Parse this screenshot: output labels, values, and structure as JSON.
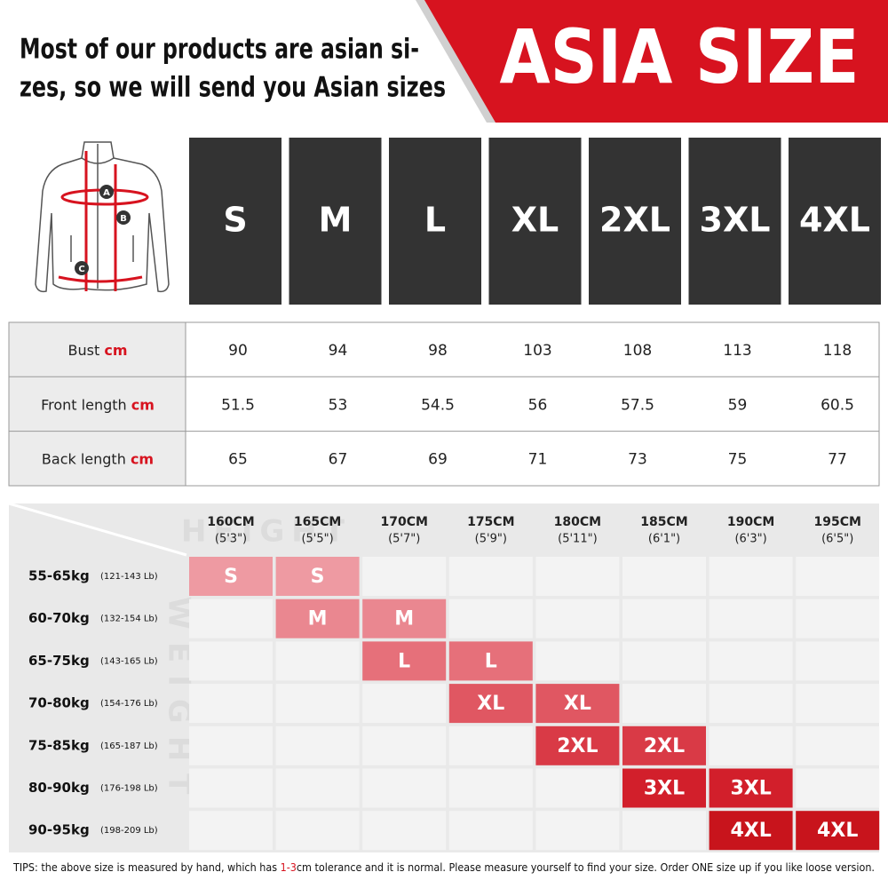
{
  "header": {
    "lines": [
      "Most of our products are asian si-",
      "zes, so we will send you Asian sizes"
    ],
    "badge": "ASIA SIZE"
  },
  "diagram": {
    "labels": [
      "A",
      "B",
      "C"
    ]
  },
  "sizes": [
    "S",
    "M",
    "L",
    "XL",
    "2XL",
    "3XL",
    "4XL"
  ],
  "measurements": [
    {
      "label": "Bust",
      "unit": "cm",
      "values": [
        90,
        94,
        98,
        103,
        108,
        113,
        118
      ]
    },
    {
      "label": "Front length",
      "unit": "cm",
      "values": [
        51.5,
        53,
        54.5,
        56,
        57.5,
        59,
        60.5
      ]
    },
    {
      "label": "Back length",
      "unit": "cm",
      "values": [
        65,
        67,
        69,
        71,
        73,
        75,
        77
      ]
    }
  ],
  "fit": {
    "height_watermark": "HEIGHT",
    "weight_watermark": "WEIGHT",
    "heights": [
      {
        "cm": "160CM",
        "ft": "(5'3\")"
      },
      {
        "cm": "165CM",
        "ft": "(5'5\")"
      },
      {
        "cm": "170CM",
        "ft": "(5'7\")"
      },
      {
        "cm": "175CM",
        "ft": "(5'9\")"
      },
      {
        "cm": "180CM",
        "ft": "(5'11\")"
      },
      {
        "cm": "185CM",
        "ft": "(6'1\")"
      },
      {
        "cm": "190CM",
        "ft": "(6'3\")"
      },
      {
        "cm": "195CM",
        "ft": "(6'5\")"
      }
    ],
    "rows": [
      {
        "weight": "55-65kg",
        "lb": "(121-143 Lb)",
        "color": "#ee9aa2",
        "cells": [
          "S",
          "S",
          null,
          null,
          null,
          null,
          null,
          null
        ]
      },
      {
        "weight": "60-70kg",
        "lb": "(132-154 Lb)",
        "color": "#ea8790",
        "cells": [
          null,
          "M",
          "M",
          null,
          null,
          null,
          null,
          null
        ]
      },
      {
        "weight": "65-75kg",
        "lb": "(143-165 Lb)",
        "color": "#e6707a",
        "cells": [
          null,
          null,
          "L",
          "L",
          null,
          null,
          null,
          null
        ]
      },
      {
        "weight": "70-80kg",
        "lb": "(154-176 Lb)",
        "color": "#e05762",
        "cells": [
          null,
          null,
          null,
          "XL",
          "XL",
          null,
          null,
          null
        ]
      },
      {
        "weight": "75-85kg",
        "lb": "(165-187 Lb)",
        "color": "#d93a46",
        "cells": [
          null,
          null,
          null,
          null,
          "2XL",
          "2XL",
          null,
          null
        ]
      },
      {
        "weight": "80-90kg",
        "lb": "(176-198 Lb)",
        "color": "#d21f2b",
        "cells": [
          null,
          null,
          null,
          null,
          null,
          "3XL",
          "3XL",
          null
        ]
      },
      {
        "weight": "90-95kg",
        "lb": "(198-209 Lb)",
        "color": "#c8141c",
        "cells": [
          null,
          null,
          null,
          null,
          null,
          null,
          "4XL",
          "4XL"
        ]
      }
    ]
  },
  "tips": {
    "before": "TIPS:  the above size is measured by hand, which has ",
    "highlight": "1-3",
    "after": "cm tolerance and it is normal. Please measure yourself to find your size. Order ONE size up if you like loose version."
  }
}
